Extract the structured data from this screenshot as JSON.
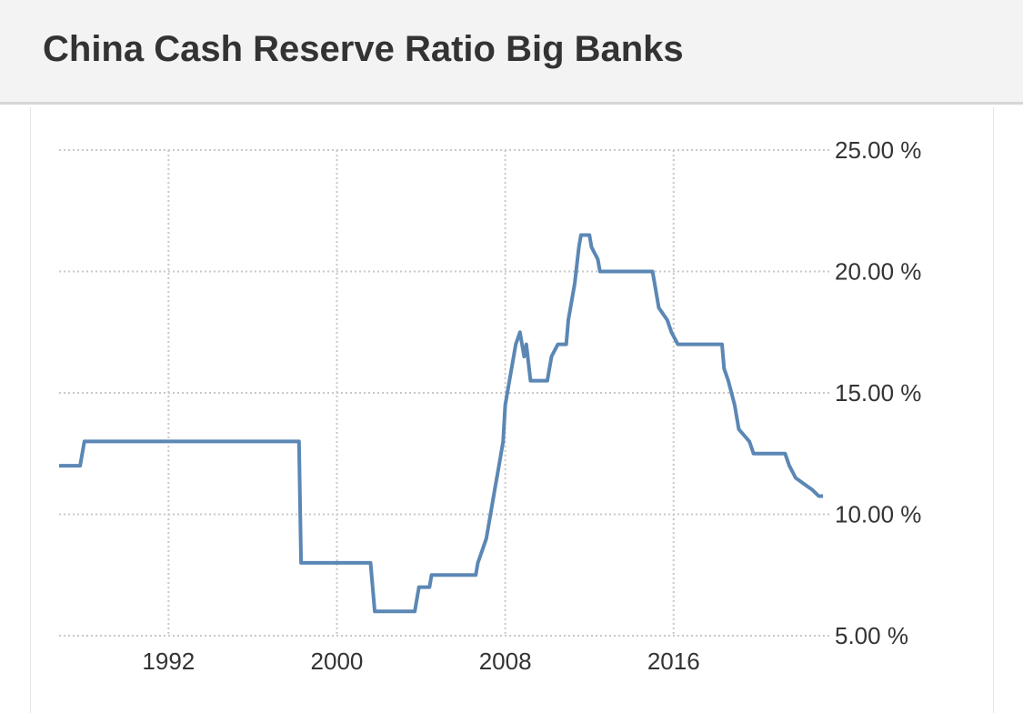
{
  "chart_data": {
    "type": "line",
    "title": "China Cash Reserve Ratio Big Banks",
    "series": [
      {
        "name": "Cash Reserve Ratio",
        "color": "#5b87b5",
        "x": [
          1986.8,
          1987.8,
          1988,
          1998.2,
          1998.3,
          2001.6,
          2001.8,
          2003.7,
          2003.9,
          2004.4,
          2004.5,
          2006.6,
          2006.7,
          2006.9,
          2007.1,
          2007.3,
          2007.5,
          2007.7,
          2007.9,
          2008.0,
          2008.1,
          2008.5,
          2008.7,
          2008.9,
          2009.0,
          2009.2,
          2010.0,
          2010.2,
          2010.5,
          2010.9,
          2011.0,
          2011.3,
          2011.5,
          2011.6,
          2012.0,
          2012.1,
          2012.4,
          2012.5,
          2015.0,
          2015.3,
          2015.7,
          2015.9,
          2016.2,
          2018.3,
          2018.4,
          2018.6,
          2018.9,
          2019.1,
          2019.6,
          2019.8,
          2021.3,
          2021.5,
          2021.8,
          2022.2,
          2022.6,
          2022.9,
          2023.1
        ],
        "values": [
          12,
          12,
          13,
          13,
          8,
          8,
          6,
          6,
          7,
          7,
          7.5,
          7.5,
          8,
          8.5,
          9,
          10,
          11,
          12,
          13,
          14.5,
          15,
          17,
          17.5,
          16.5,
          17,
          15.5,
          15.5,
          16.5,
          17,
          17,
          18,
          19.5,
          21,
          21.5,
          21.5,
          21,
          20.5,
          20,
          20,
          18.5,
          18,
          17.5,
          17,
          17,
          16,
          15.5,
          14.5,
          13.5,
          13,
          12.5,
          12.5,
          12,
          11.5,
          11.25,
          11,
          10.75,
          10.75
        ]
      }
    ],
    "xlim": [
      1986.8,
      2023.4
    ],
    "xticks": [
      1992,
      2000,
      2008,
      2016
    ],
    "ylim": [
      5,
      25
    ],
    "yticks": [
      {
        "value": 5,
        "label": "5.00 %"
      },
      {
        "value": 10,
        "label": "10.00 %"
      },
      {
        "value": 15,
        "label": "15.00 %"
      },
      {
        "value": 20,
        "label": "20.00 %"
      },
      {
        "value": 25,
        "label": "25.00 %"
      }
    ],
    "grid": true
  }
}
